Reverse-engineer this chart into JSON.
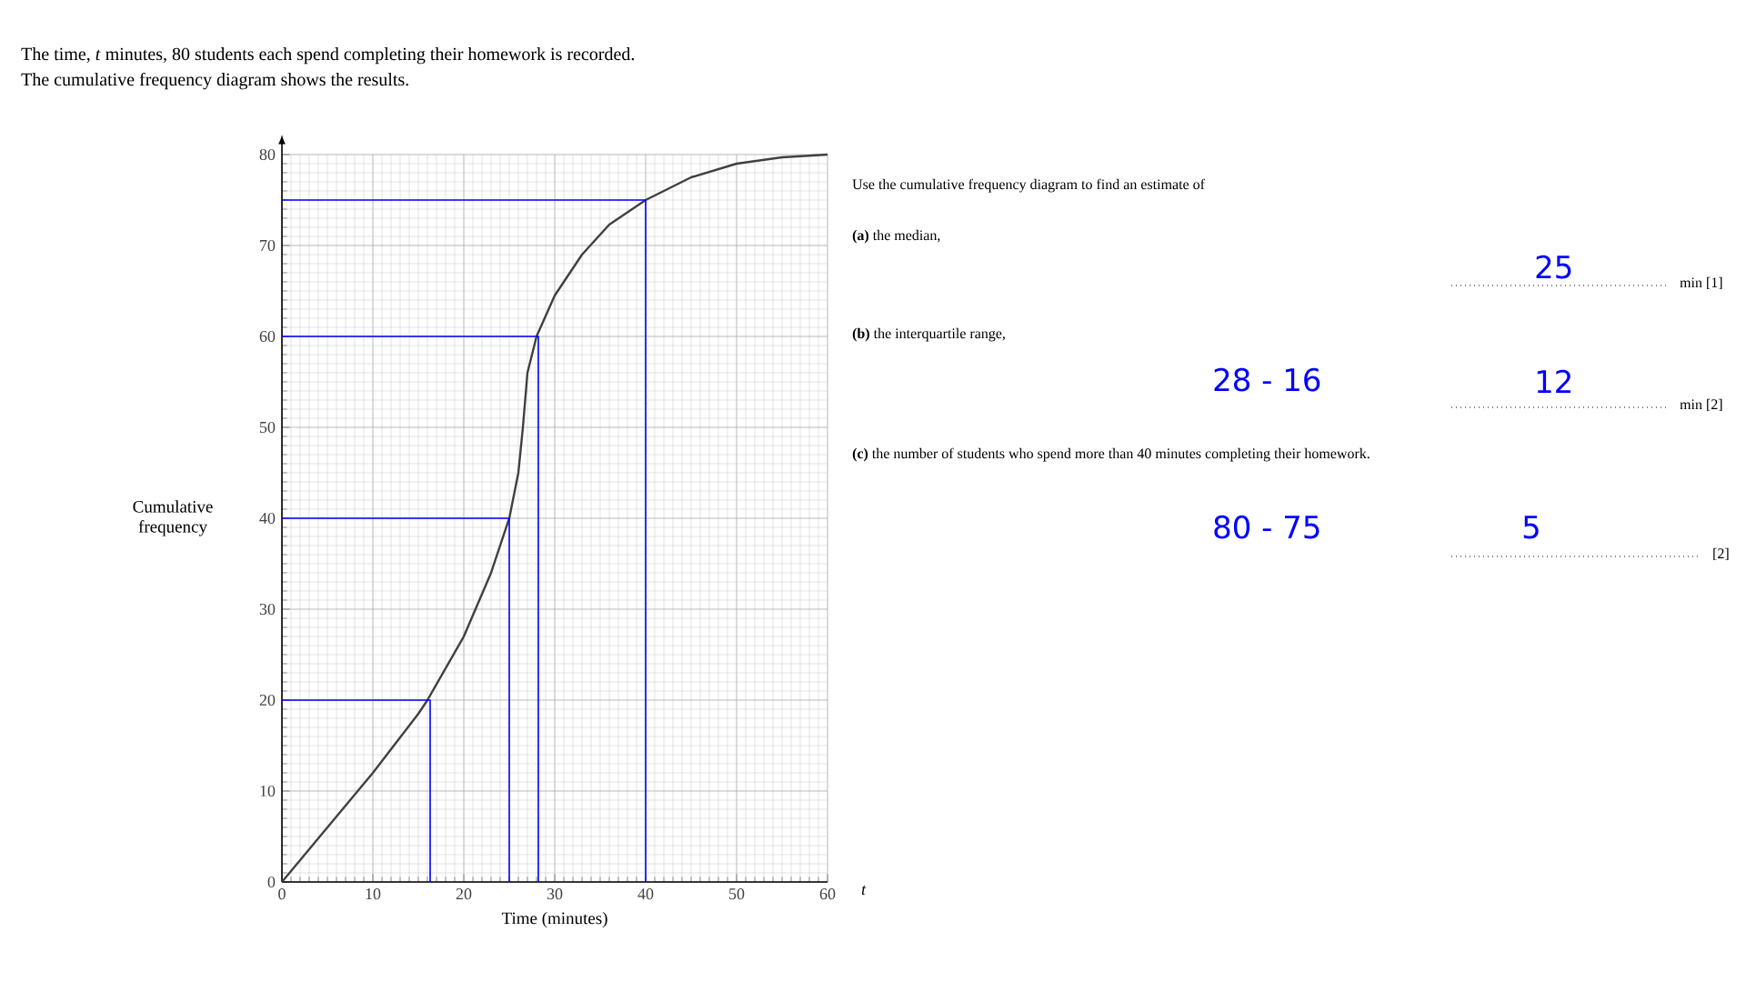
{
  "chart_data": {
    "type": "line",
    "title": "The time, *t* minutes, 80 students each spend completing their homework is recorded.",
    "subtitle": "The cumulative frequency diagram shows the results.",
    "xlabel": "Time (minutes)",
    "ylabel": "Cumulative frequency",
    "xlim": [
      0,
      60
    ],
    "ylim": [
      0,
      80
    ],
    "xticks": [
      0,
      10,
      20,
      30,
      40,
      50,
      60
    ],
    "yticks": [
      0,
      10,
      20,
      30,
      40,
      50,
      60,
      70,
      80
    ],
    "grid": true,
    "marker": "none",
    "line_style": "solid",
    "series": [
      {
        "color": "#404040",
        "x": [
          0,
          5,
          10,
          15,
          16,
          20,
          23,
          25,
          26,
          26.5,
          27,
          28,
          30,
          33,
          36,
          40,
          45,
          50,
          55,
          60
        ],
        "values": [
          0,
          6,
          12,
          18.5,
          20,
          27,
          34,
          40,
          45,
          50,
          56,
          60,
          64.5,
          69,
          72.3,
          75,
          77.5,
          79,
          79.7,
          80
        ]
      },
      {
        "color": "#0000ff",
        "x": [
          0,
          16.3,
          16.3
        ],
        "values": [
          20,
          20,
          0
        ]
      },
      {
        "color": "#0000ff",
        "x": [
          0,
          25,
          25
        ],
        "values": [
          40,
          40,
          0
        ]
      },
      {
        "color": "#0000ff",
        "x": [
          0,
          28.2,
          28.2
        ],
        "values": [
          60,
          60,
          0
        ]
      },
      {
        "color": "#0000ff",
        "x": [
          0,
          40,
          40
        ],
        "values": [
          75,
          75,
          0
        ]
      }
    ],
    "annotations": [
      "Use the cumulative frequency diagram to find an estimate of",
      "**(a)** the median,",
      "25",
      "min [1]",
      "**(b)** the interquartile range,",
      "28 - 16",
      "12",
      "min [2]",
      "**(c)** the number of students who spend more than 40 minutes completing their homework.",
      "80 - 75",
      "5",
      "[2]",
      "t"
    ]
  }
}
